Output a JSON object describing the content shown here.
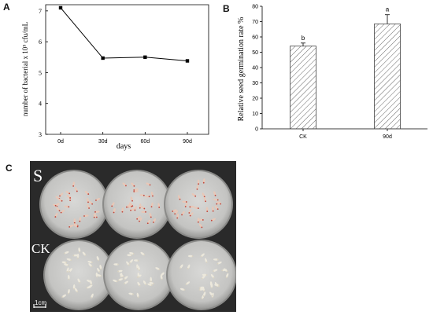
{
  "figure": {
    "panels": [
      "A",
      "B",
      "C"
    ]
  },
  "chart_data": [
    {
      "type": "line",
      "panel": "A",
      "x": [
        "0d",
        "30d",
        "60d",
        "90d"
      ],
      "values": [
        7.1,
        5.47,
        5.5,
        5.38
      ],
      "xlabel": "days",
      "ylabel": "number of bacterial x 10⁵ cfu/mL",
      "ylim": [
        3,
        7.2
      ],
      "yticks": [
        "3",
        "4",
        "5",
        "6",
        "7"
      ],
      "marker": "square",
      "grid": false
    },
    {
      "type": "bar",
      "panel": "B",
      "categories": [
        "CK",
        "90d"
      ],
      "values": [
        54,
        68.5
      ],
      "errors": [
        2,
        6
      ],
      "significance": [
        "b",
        "a"
      ],
      "ylabel": "Relative seed germination rate %",
      "ylim": [
        0,
        80
      ],
      "yticks": [
        "0",
        "10",
        "20",
        "30",
        "40",
        "50",
        "60",
        "70",
        "80"
      ],
      "fill": "hatched",
      "grid": false
    }
  ],
  "photo": {
    "panel": "C",
    "row_labels": [
      "S",
      "CK"
    ],
    "scale_bar": "1cm",
    "dishes_per_row": 3
  }
}
